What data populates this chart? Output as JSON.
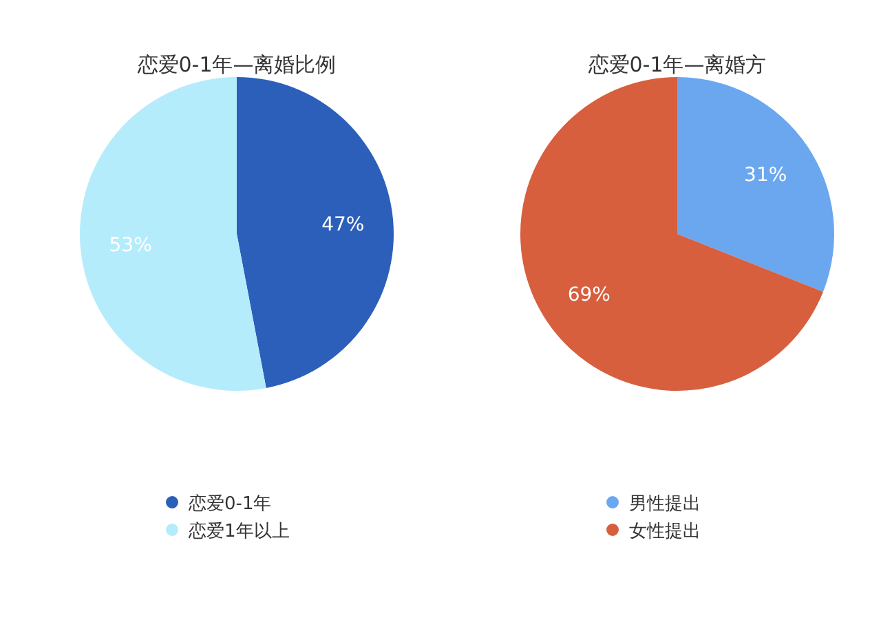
{
  "chart_data": [
    {
      "type": "pie",
      "title": "恋爱0-1年—离婚比例",
      "categories": [
        "恋爱0-1年",
        "恋爱1年以上"
      ],
      "values": [
        47,
        53
      ],
      "colors": [
        "#2b5fba",
        "#b5ecfb"
      ],
      "value_labels": [
        "47%",
        "53%"
      ],
      "legend": "bottom"
    },
    {
      "type": "pie",
      "title": "恋爱0-1年—离婚方",
      "categories": [
        "男性提出",
        "女性提出"
      ],
      "values": [
        31,
        69
      ],
      "colors": [
        "#6aa7ef",
        "#d75f3d"
      ],
      "value_labels": [
        "31%",
        "69%"
      ],
      "legend": "bottom"
    }
  ]
}
